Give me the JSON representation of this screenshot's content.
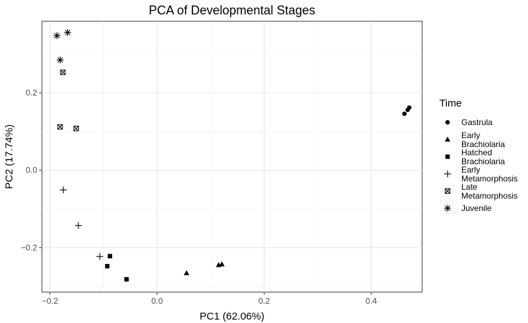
{
  "chart_data": {
    "type": "scatter",
    "title": "PCA of Developmental Stages",
    "xlabel": "PC1 (62.06%)",
    "ylabel": "PC2 (17.74%)",
    "xlim": [
      -0.215,
      0.495
    ],
    "ylim": [
      -0.315,
      0.385
    ],
    "x_ticks": [
      -0.2,
      0.0,
      0.2,
      0.4
    ],
    "x_tick_labels": [
      "−0.2",
      "0.0",
      "0.2",
      "0.4"
    ],
    "y_ticks": [
      -0.2,
      0.0,
      0.2
    ],
    "y_tick_labels": [
      "−0.2",
      "0.0",
      "0.2"
    ],
    "grid": true,
    "legend": {
      "title": "Time",
      "position": "right"
    },
    "series": [
      {
        "name": "Gastrula",
        "marker": "circle",
        "points": [
          [
            0.462,
            0.146
          ],
          [
            0.468,
            0.156
          ],
          [
            0.471,
            0.162
          ]
        ]
      },
      {
        "name": "Early\nBrachiolaria",
        "marker": "triangle",
        "points": [
          [
            0.055,
            -0.266
          ],
          [
            0.115,
            -0.245
          ],
          [
            0.121,
            -0.243
          ]
        ]
      },
      {
        "name": "Hatched\nBrachiolaria",
        "marker": "square",
        "points": [
          [
            -0.088,
            -0.222
          ],
          [
            -0.093,
            -0.248
          ],
          [
            -0.057,
            -0.282
          ]
        ]
      },
      {
        "name": "Early\nMetamorphosis",
        "marker": "plus",
        "points": [
          [
            -0.175,
            -0.051
          ],
          [
            -0.147,
            -0.143
          ],
          [
            -0.107,
            -0.223
          ]
        ]
      },
      {
        "name": "Late\nMetamorphosis",
        "marker": "square-cross",
        "points": [
          [
            -0.176,
            0.253
          ],
          [
            -0.181,
            0.112
          ],
          [
            -0.151,
            0.108
          ]
        ]
      },
      {
        "name": "Juvenile",
        "marker": "asterisk",
        "points": [
          [
            -0.187,
            0.348
          ],
          [
            -0.167,
            0.356
          ],
          [
            -0.181,
            0.285
          ]
        ]
      }
    ]
  }
}
